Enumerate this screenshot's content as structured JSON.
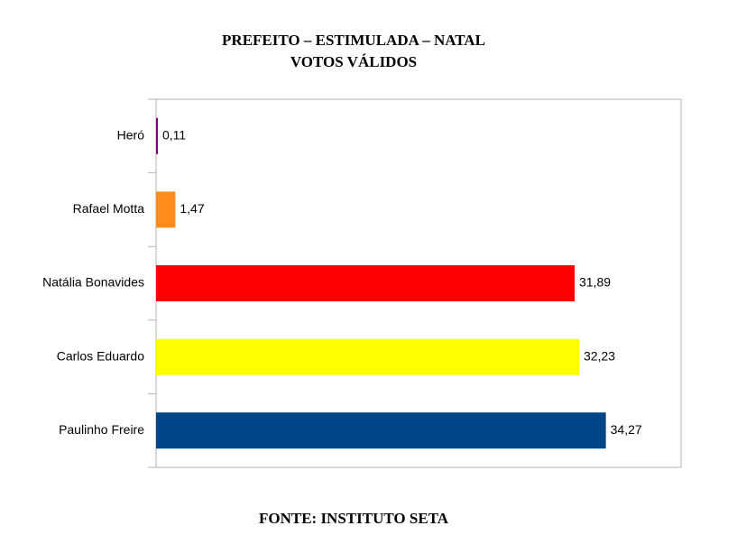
{
  "chart_data": {
    "type": "bar",
    "orientation": "horizontal",
    "title": "PREFEITO – ESTIMULADA – NATAL",
    "subtitle": "VOTOS VÁLIDOS",
    "source": "FONTE: INSTITUTO SETA",
    "categories": [
      "Heró",
      "Rafael Motta",
      "Natália Bonavides",
      "Carlos Eduardo",
      "Paulinho Freire"
    ],
    "values": [
      0.11,
      1.47,
      31.89,
      32.23,
      34.27
    ],
    "value_labels": [
      "0,11",
      "1,47",
      "31,89",
      "32,23",
      "34,27"
    ],
    "colors": [
      "#800080",
      "#ff8c1a",
      "#ff0000",
      "#ffff00",
      "#004586"
    ],
    "xlim": [
      0,
      40
    ]
  }
}
